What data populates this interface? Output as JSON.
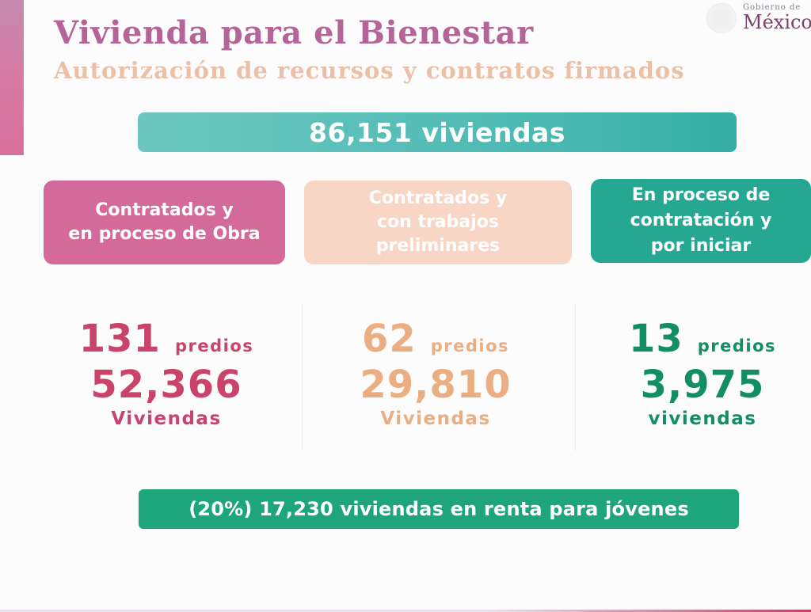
{
  "header": {
    "title": "Vivienda para el Bienestar",
    "subtitle": "Autorización de recursos y contratos firmados",
    "logo": {
      "icon": "government-seal-icon",
      "small_text": "Gobierno de",
      "big_text": "México"
    }
  },
  "total_banner": {
    "text": "86,151 viviendas",
    "color": "#4fbbb4"
  },
  "categories": [
    {
      "label": "Contratados y\nen proceso de Obra",
      "color": "#d36a99",
      "predios": "131",
      "predios_unit": "predios",
      "viviendas": "52,366",
      "viviendas_label": "Viviendas",
      "text_color": "#c9436a"
    },
    {
      "label": "Contratados y\ncon trabajos\npreliminares",
      "color": "#f8d6c6",
      "predios": "62",
      "predios_unit": "predios",
      "viviendas": "29,810",
      "viviendas_label": "Viviendas",
      "text_color": "#eaae82"
    },
    {
      "label": "En proceso de\ncontratación y\npor iniciar",
      "color": "#26a792",
      "predios": "13",
      "predios_unit": "predios",
      "viviendas": "3,975",
      "viviendas_label": "viviendas",
      "text_color": "#138d66"
    }
  ],
  "rent_banner": {
    "text": "(20%) 17,230 viviendas en renta para jóvenes",
    "color": "#1ea57c"
  }
}
